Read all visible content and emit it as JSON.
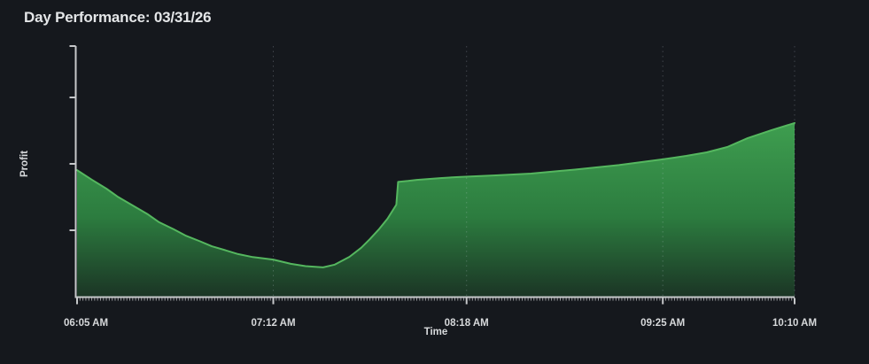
{
  "header": {
    "title": "Day Performance: 03/31/26"
  },
  "chart_data": {
    "type": "area",
    "title": "Day Performance: 03/31/26",
    "xlabel": "Time",
    "ylabel": "Profit",
    "legend": "none",
    "grid": "vertical dotted gridlines at major x ticks",
    "x_axis": {
      "tick_labels": [
        "06:05 AM",
        "07:12 AM",
        "08:18 AM",
        "09:25 AM",
        "10:10 AM"
      ],
      "tick_minutes": [
        0,
        67,
        133,
        200,
        245
      ],
      "range_minutes": [
        0,
        245
      ],
      "minor_tick_every_minutes": 1
    },
    "y_axis": {
      "tick_labels": [],
      "ticks": [
        0.265,
        0.53,
        0.795,
        1.0
      ],
      "range": [
        0,
        1
      ],
      "note": "axis is unlabeled; values are relative profit units"
    },
    "series": [
      {
        "name": "Profit",
        "points": [
          [
            0,
            0.505
          ],
          [
            5,
            0.467
          ],
          [
            10,
            0.431
          ],
          [
            14,
            0.398
          ],
          [
            19,
            0.364
          ],
          [
            24,
            0.33
          ],
          [
            28,
            0.297
          ],
          [
            33,
            0.269
          ],
          [
            37,
            0.244
          ],
          [
            42,
            0.221
          ],
          [
            46,
            0.201
          ],
          [
            51,
            0.184
          ],
          [
            55,
            0.17
          ],
          [
            60,
            0.158
          ],
          [
            67,
            0.148
          ],
          [
            73,
            0.131
          ],
          [
            78,
            0.122
          ],
          [
            84,
            0.117
          ],
          [
            88,
            0.128
          ],
          [
            93,
            0.159
          ],
          [
            97,
            0.195
          ],
          [
            100,
            0.23
          ],
          [
            103,
            0.268
          ],
          [
            106,
            0.311
          ],
          [
            109,
            0.367
          ],
          [
            109.6,
            0.458
          ],
          [
            113,
            0.462
          ],
          [
            116,
            0.466
          ],
          [
            124,
            0.473
          ],
          [
            131,
            0.478
          ],
          [
            143,
            0.484
          ],
          [
            155,
            0.491
          ],
          [
            170,
            0.507
          ],
          [
            185,
            0.525
          ],
          [
            200,
            0.548
          ],
          [
            208,
            0.562
          ],
          [
            215,
            0.576
          ],
          [
            222,
            0.597
          ],
          [
            229,
            0.633
          ],
          [
            237,
            0.664
          ],
          [
            245,
            0.693
          ]
        ]
      }
    ],
    "colors": {
      "background": "#15181d",
      "title_text": "#e4e6e8",
      "tick_text": "#d7d9db",
      "axis": "#c6c8ca",
      "gridline": "rgba(205,215,225,0.24)",
      "line": "#55b75f",
      "fill_top": "#3f9f50",
      "fill_mid": "#2c7c3f",
      "fill_bottom": "#1b3525"
    }
  }
}
